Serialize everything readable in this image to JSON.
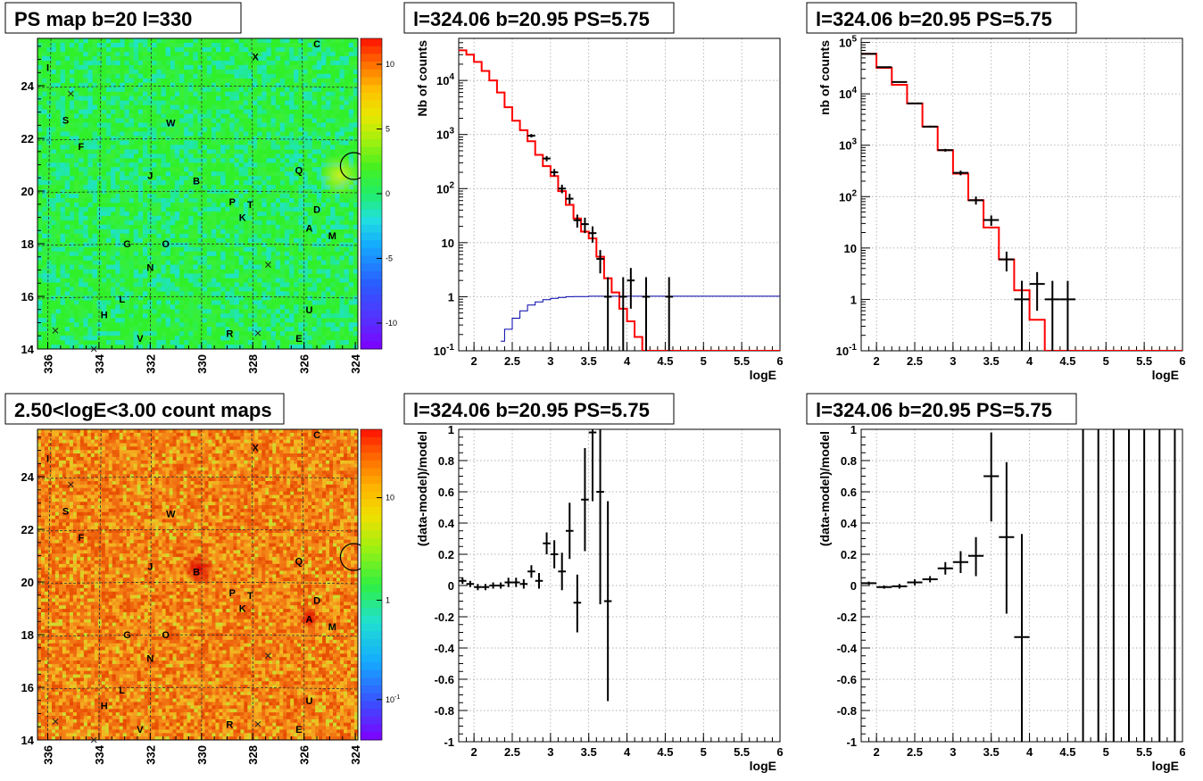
{
  "panels": [
    {
      "id": "ps-map",
      "title": "PS map b=20 l=330",
      "kind": "skymap",
      "x_ticks": [
        "336",
        "334",
        "332",
        "330",
        "328",
        "326",
        "324"
      ],
      "y_ticks": [
        "14",
        "16",
        "18",
        "20",
        "22",
        "24"
      ],
      "colorbar_ticks": [
        "10",
        "5",
        "0",
        "-5",
        "-10"
      ],
      "colorbar_range": [
        -12,
        12
      ],
      "background_color": "#2ff02a"
    },
    {
      "id": "spectrum-a",
      "title": "l=324.06 b=20.95 PS=5.75",
      "kind": "spectrum",
      "ylabel": "Nb of counts",
      "xlabel": "logE",
      "x_ticks": [
        "2",
        "2.5",
        "3",
        "3.5",
        "4",
        "4.5",
        "5",
        "5.5",
        "6"
      ],
      "y_ticks": [
        "10^-1",
        "1",
        "10",
        "10^2",
        "10^3",
        "10^4"
      ]
    },
    {
      "id": "spectrum-b",
      "title": "l=324.06 b=20.95 PS=5.75",
      "kind": "spectrum",
      "ylabel": "nb of counts",
      "xlabel": "logE",
      "x_ticks": [
        "2",
        "2.5",
        "3",
        "3.5",
        "4",
        "4.5",
        "5",
        "5.5",
        "6"
      ],
      "y_ticks": [
        "10^-1",
        "1",
        "10",
        "10^2",
        "10^3",
        "10^4",
        "10^5"
      ]
    },
    {
      "id": "count-map",
      "title": "2.50<logE<3.00 count maps",
      "kind": "skymap",
      "x_ticks": [
        "336",
        "334",
        "332",
        "330",
        "328",
        "326",
        "324"
      ],
      "y_ticks": [
        "14",
        "16",
        "18",
        "20",
        "22",
        "24"
      ],
      "colorbar_ticks": [
        "10",
        "1",
        "10^-1"
      ],
      "background_color": "#f08a1a"
    },
    {
      "id": "residual-a",
      "title": "l=324.06 b=20.95 PS=5.75",
      "kind": "residual",
      "ylabel": "(data-model)/model",
      "xlabel": "logE",
      "x_ticks": [
        "2",
        "2.5",
        "3",
        "3.5",
        "4",
        "4.5",
        "5",
        "5.5",
        "6"
      ],
      "y_ticks": [
        "-1",
        "-0.8",
        "-0.6",
        "-0.4",
        "-0.2",
        "0",
        "0.2",
        "0.4",
        "0.6",
        "0.8",
        "1"
      ]
    },
    {
      "id": "residual-b",
      "title": "l=324.06 b=20.95 PS=5.75",
      "kind": "residual",
      "ylabel": "(data-model)/model",
      "xlabel": "logE",
      "x_ticks": [
        "2",
        "2.5",
        "3",
        "3.5",
        "4",
        "4.5",
        "5",
        "5.5",
        "6"
      ],
      "y_ticks": [
        "-1",
        "-0.8",
        "-0.6",
        "-0.4",
        "-0.2",
        "0",
        "0.2",
        "0.4",
        "0.6",
        "0.8",
        "1"
      ]
    }
  ],
  "source_labels": [
    {
      "t": "C",
      "l": 325.5,
      "b": 25.6
    },
    {
      "t": "X",
      "l": 327.9,
      "b": 25.1
    },
    {
      "t": "I",
      "l": 336.0,
      "b": 24.7
    },
    {
      "t": "S",
      "l": 335.3,
      "b": 22.7
    },
    {
      "t": "W",
      "l": 331.2,
      "b": 22.6
    },
    {
      "t": "F",
      "l": 334.7,
      "b": 21.7
    },
    {
      "t": "Q",
      "l": 326.2,
      "b": 20.8
    },
    {
      "t": "J",
      "l": 332.0,
      "b": 20.6
    },
    {
      "t": "B",
      "l": 330.2,
      "b": 20.4
    },
    {
      "t": "P",
      "l": 328.8,
      "b": 19.6
    },
    {
      "t": "T",
      "l": 328.1,
      "b": 19.5
    },
    {
      "t": "D",
      "l": 325.5,
      "b": 19.3
    },
    {
      "t": "K",
      "l": 328.4,
      "b": 19.0
    },
    {
      "t": "A",
      "l": 325.8,
      "b": 18.6
    },
    {
      "t": "M",
      "l": 324.9,
      "b": 18.3
    },
    {
      "t": "G",
      "l": 332.9,
      "b": 18.0
    },
    {
      "t": "O",
      "l": 331.4,
      "b": 18.0
    },
    {
      "t": "N",
      "l": 332.0,
      "b": 17.1
    },
    {
      "t": "L",
      "l": 333.1,
      "b": 15.9
    },
    {
      "t": "U",
      "l": 325.8,
      "b": 15.5
    },
    {
      "t": "H",
      "l": 333.8,
      "b": 15.3
    },
    {
      "t": "R",
      "l": 328.9,
      "b": 14.6
    },
    {
      "t": "V",
      "l": 332.4,
      "b": 14.4
    },
    {
      "t": "E",
      "l": 326.2,
      "b": 14.4
    }
  ],
  "cross_marks": [
    {
      "l": 335.1,
      "b": 23.7
    },
    {
      "l": 327.4,
      "b": 17.2
    },
    {
      "l": 335.7,
      "b": 14.7
    },
    {
      "l": 327.8,
      "b": 14.6
    },
    {
      "l": 334.2,
      "b": 14.0
    }
  ],
  "circle_mark": {
    "l": 324.06,
    "b": 20.95
  },
  "chart_data": [
    {
      "panel": "spectrum-a",
      "type": "line",
      "log_y": true,
      "xlim": [
        1.8,
        6.0
      ],
      "ylim": [
        0.1,
        60000
      ],
      "series": [
        {
          "role": "model",
          "color": "#ff0000",
          "edges": [
            1.8,
            1.9,
            2.0,
            2.1,
            2.2,
            2.3,
            2.4,
            2.5,
            2.6,
            2.7,
            2.8,
            2.9,
            3.0,
            3.1,
            3.2,
            3.3,
            3.4,
            3.5,
            3.6,
            3.7,
            3.8,
            3.9,
            4.0,
            4.1,
            4.2,
            4.3,
            6.0
          ],
          "values": [
            36000,
            30000,
            22000,
            15000,
            10000,
            6000,
            3200,
            1800,
            1200,
            750,
            420,
            260,
            170,
            90,
            50,
            28,
            16,
            12,
            5.5,
            2.2,
            1.2,
            0.6,
            0.35,
            0.18,
            0.1,
            0.1
          ]
        },
        {
          "role": "background",
          "color": "#0000aa",
          "edges": [
            2.35,
            2.4,
            2.5,
            2.6,
            2.7,
            2.8,
            2.9,
            3.0,
            3.1,
            3.2,
            3.3,
            3.5,
            6.0
          ],
          "values": [
            0.15,
            0.25,
            0.4,
            0.55,
            0.7,
            0.8,
            0.88,
            0.93,
            0.97,
            1.0,
            1.01,
            1.02
          ]
        }
      ],
      "points": [
        {
          "x": 2.75,
          "y": 950,
          "ylo": 880,
          "yhi": 1020,
          "xhw": 0.05
        },
        {
          "x": 2.95,
          "y": 360,
          "ylo": 320,
          "yhi": 400,
          "xhw": 0.05
        },
        {
          "x": 3.05,
          "y": 200,
          "ylo": 170,
          "yhi": 230,
          "xhw": 0.05
        },
        {
          "x": 3.15,
          "y": 100,
          "ylo": 82,
          "yhi": 118,
          "xhw": 0.05
        },
        {
          "x": 3.25,
          "y": 65,
          "ylo": 52,
          "yhi": 80,
          "xhw": 0.05
        },
        {
          "x": 3.35,
          "y": 26,
          "ylo": 19,
          "yhi": 33,
          "xhw": 0.05
        },
        {
          "x": 3.45,
          "y": 22,
          "ylo": 15,
          "yhi": 29,
          "xhw": 0.05
        },
        {
          "x": 3.55,
          "y": 15,
          "ylo": 10,
          "yhi": 20,
          "xhw": 0.05
        },
        {
          "x": 3.65,
          "y": 5,
          "ylo": 2.7,
          "yhi": 7.3,
          "xhw": 0.05
        },
        {
          "x": 3.75,
          "y": 1,
          "ylo": 0.1,
          "yhi": 2.3,
          "xhw": 0.05
        },
        {
          "x": 3.95,
          "y": 1,
          "ylo": 0.1,
          "yhi": 2.3,
          "xhw": 0.05
        },
        {
          "x": 4.05,
          "y": 2,
          "ylo": 0.6,
          "yhi": 3.4,
          "xhw": 0.05
        },
        {
          "x": 4.25,
          "y": 1,
          "ylo": 0.1,
          "yhi": 2.3,
          "xhw": 0.05
        },
        {
          "x": 4.55,
          "y": 1,
          "ylo": 0.1,
          "yhi": 2.3,
          "xhw": 0.05
        }
      ]
    },
    {
      "panel": "spectrum-b",
      "type": "line",
      "log_y": true,
      "xlim": [
        1.8,
        6.0
      ],
      "ylim": [
        0.1,
        120000
      ],
      "series": [
        {
          "role": "model",
          "color": "#ff0000",
          "edges": [
            1.8,
            2.0,
            2.2,
            2.4,
            2.6,
            2.8,
            3.0,
            3.2,
            3.4,
            3.6,
            3.8,
            4.0,
            4.2,
            6.0
          ],
          "values": [
            60000,
            32000,
            15000,
            6500,
            2300,
            800,
            280,
            85,
            25,
            6,
            1.5,
            0.4,
            0.1
          ]
        }
      ],
      "points": [
        {
          "x": 1.9,
          "y": 60000,
          "ylo": 59000,
          "yhi": 61000,
          "xhw": 0.1
        },
        {
          "x": 2.1,
          "y": 33000,
          "ylo": 32000,
          "yhi": 34000,
          "xhw": 0.1
        },
        {
          "x": 2.3,
          "y": 17000,
          "ylo": 16600,
          "yhi": 17400,
          "xhw": 0.1
        },
        {
          "x": 2.5,
          "y": 6500,
          "ylo": 6300,
          "yhi": 6700,
          "xhw": 0.1
        },
        {
          "x": 2.7,
          "y": 2300,
          "ylo": 2200,
          "yhi": 2400,
          "xhw": 0.1
        },
        {
          "x": 2.9,
          "y": 800,
          "ylo": 750,
          "yhi": 850,
          "xhw": 0.1
        },
        {
          "x": 3.1,
          "y": 290,
          "ylo": 260,
          "yhi": 320,
          "xhw": 0.1
        },
        {
          "x": 3.3,
          "y": 85,
          "ylo": 70,
          "yhi": 100,
          "xhw": 0.1
        },
        {
          "x": 3.5,
          "y": 35,
          "ylo": 27,
          "yhi": 43,
          "xhw": 0.1
        },
        {
          "x": 3.7,
          "y": 6,
          "ylo": 3.5,
          "yhi": 8.5,
          "xhw": 0.1
        },
        {
          "x": 3.9,
          "y": 1,
          "ylo": 0.1,
          "yhi": 2.3,
          "xhw": 0.1
        },
        {
          "x": 4.1,
          "y": 2,
          "ylo": 0.6,
          "yhi": 3.4,
          "xhw": 0.1
        },
        {
          "x": 4.3,
          "y": 1,
          "ylo": 0.1,
          "yhi": 2.3,
          "xhw": 0.1
        },
        {
          "x": 4.5,
          "y": 1,
          "ylo": 0.1,
          "yhi": 2.3,
          "xhw": 0.1
        }
      ]
    },
    {
      "panel": "residual-a",
      "type": "scatter",
      "xlim": [
        1.8,
        6.0
      ],
      "ylim": [
        -1,
        1
      ],
      "points": [
        {
          "x": 1.85,
          "y": 0.03,
          "ylo": 0.01,
          "yhi": 0.05,
          "xhw": 0.05
        },
        {
          "x": 1.95,
          "y": 0.01,
          "ylo": -0.01,
          "yhi": 0.03,
          "xhw": 0.05
        },
        {
          "x": 2.05,
          "y": -0.01,
          "ylo": -0.03,
          "yhi": 0.01,
          "xhw": 0.05
        },
        {
          "x": 2.15,
          "y": -0.01,
          "ylo": -0.03,
          "yhi": 0.01,
          "xhw": 0.05
        },
        {
          "x": 2.25,
          "y": 0.0,
          "ylo": -0.02,
          "yhi": 0.02,
          "xhw": 0.05
        },
        {
          "x": 2.35,
          "y": 0.0,
          "ylo": -0.02,
          "yhi": 0.02,
          "xhw": 0.05
        },
        {
          "x": 2.45,
          "y": 0.02,
          "ylo": -0.01,
          "yhi": 0.05,
          "xhw": 0.05
        },
        {
          "x": 2.55,
          "y": 0.02,
          "ylo": -0.01,
          "yhi": 0.05,
          "xhw": 0.05
        },
        {
          "x": 2.65,
          "y": 0.01,
          "ylo": -0.02,
          "yhi": 0.04,
          "xhw": 0.05
        },
        {
          "x": 2.75,
          "y": 0.09,
          "ylo": 0.05,
          "yhi": 0.13,
          "xhw": 0.05
        },
        {
          "x": 2.85,
          "y": 0.03,
          "ylo": -0.02,
          "yhi": 0.08,
          "xhw": 0.05
        },
        {
          "x": 2.95,
          "y": 0.27,
          "ylo": 0.2,
          "yhi": 0.34,
          "xhw": 0.05
        },
        {
          "x": 3.05,
          "y": 0.2,
          "ylo": 0.11,
          "yhi": 0.29,
          "xhw": 0.05
        },
        {
          "x": 3.15,
          "y": 0.09,
          "ylo": -0.03,
          "yhi": 0.21,
          "xhw": 0.05
        },
        {
          "x": 3.25,
          "y": 0.35,
          "ylo": 0.17,
          "yhi": 0.53,
          "xhw": 0.05
        },
        {
          "x": 3.35,
          "y": -0.11,
          "ylo": -0.3,
          "yhi": 0.07,
          "xhw": 0.05
        },
        {
          "x": 3.45,
          "y": 0.55,
          "ylo": 0.22,
          "yhi": 0.88,
          "xhw": 0.05
        },
        {
          "x": 3.55,
          "y": 0.98,
          "ylo": 0.54,
          "yhi": 1.0,
          "xhw": 0.05
        },
        {
          "x": 3.65,
          "y": 0.6,
          "ylo": -0.12,
          "yhi": 1.0,
          "xhw": 0.05
        },
        {
          "x": 3.75,
          "y": -0.1,
          "ylo": -0.74,
          "yhi": 0.54,
          "xhw": 0.05
        }
      ]
    },
    {
      "panel": "residual-b",
      "type": "scatter",
      "xlim": [
        1.8,
        6.0
      ],
      "ylim": [
        -1,
        1
      ],
      "points": [
        {
          "x": 1.9,
          "y": 0.015,
          "ylo": 0.005,
          "yhi": 0.025,
          "xhw": 0.1
        },
        {
          "x": 2.1,
          "y": -0.01,
          "ylo": -0.02,
          "yhi": 0.0,
          "xhw": 0.1
        },
        {
          "x": 2.3,
          "y": -0.005,
          "ylo": -0.02,
          "yhi": 0.01,
          "xhw": 0.1
        },
        {
          "x": 2.5,
          "y": 0.02,
          "ylo": 0.0,
          "yhi": 0.04,
          "xhw": 0.1
        },
        {
          "x": 2.7,
          "y": 0.04,
          "ylo": 0.02,
          "yhi": 0.06,
          "xhw": 0.1
        },
        {
          "x": 2.9,
          "y": 0.11,
          "ylo": 0.07,
          "yhi": 0.15,
          "xhw": 0.1
        },
        {
          "x": 3.1,
          "y": 0.15,
          "ylo": 0.08,
          "yhi": 0.22,
          "xhw": 0.1
        },
        {
          "x": 3.3,
          "y": 0.19,
          "ylo": 0.06,
          "yhi": 0.31,
          "xhw": 0.1
        },
        {
          "x": 3.5,
          "y": 0.7,
          "ylo": 0.41,
          "yhi": 0.98,
          "xhw": 0.1
        },
        {
          "x": 3.7,
          "y": 0.31,
          "ylo": -0.18,
          "yhi": 0.79,
          "xhw": 0.1
        },
        {
          "x": 3.9,
          "y": -0.33,
          "ylo": -1.0,
          "yhi": 0.33,
          "xhw": 0.1
        },
        {
          "x": 4.7,
          "y": 1.0,
          "ylo": -1.0,
          "yhi": 1.0,
          "xhw": 0.0
        },
        {
          "x": 4.9,
          "y": 1.0,
          "ylo": -1.0,
          "yhi": 1.0,
          "xhw": 0.0
        },
        {
          "x": 5.1,
          "y": 1.0,
          "ylo": -1.0,
          "yhi": 1.0,
          "xhw": 0.0
        },
        {
          "x": 5.3,
          "y": 1.0,
          "ylo": -1.0,
          "yhi": 1.0,
          "xhw": 0.0
        },
        {
          "x": 5.5,
          "y": 1.0,
          "ylo": -1.0,
          "yhi": 1.0,
          "xhw": 0.0
        },
        {
          "x": 5.7,
          "y": 1.0,
          "ylo": -1.0,
          "yhi": 1.0,
          "xhw": 0.0
        },
        {
          "x": 5.9,
          "y": 1.0,
          "ylo": -1.0,
          "yhi": 1.0,
          "xhw": 0.0
        }
      ]
    }
  ]
}
